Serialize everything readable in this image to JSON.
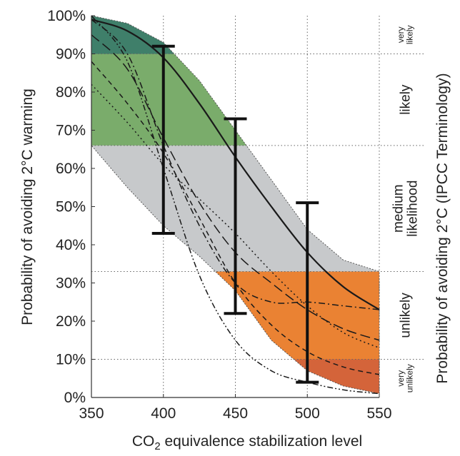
{
  "chart_data": {
    "type": "line",
    "xlabel_parts": [
      "CO",
      "2",
      " equivalence stabilization level"
    ],
    "ylabel": "Probability of avoiding 2°C warming",
    "y2label": "Probability of avoiding 2°C  (IPCC Terminology)",
    "xlim": [
      350,
      550
    ],
    "ylim": [
      0,
      100
    ],
    "x_ticks": [
      350,
      400,
      450,
      500,
      550
    ],
    "x_tick_labels": [
      "350",
      "400",
      "450",
      "500",
      "550"
    ],
    "y_ticks": [
      0,
      10,
      20,
      30,
      40,
      50,
      60,
      70,
      80,
      90,
      100
    ],
    "y_tick_labels": [
      "0%",
      "10%",
      "20%",
      "30%",
      "40%",
      "50%",
      "60%",
      "70%",
      "80%",
      "90%",
      "100%"
    ],
    "grid": true,
    "grid_y": [
      10,
      33,
      66,
      90
    ],
    "grid_x": [
      400,
      450,
      500
    ],
    "envelope": {
      "x": [
        350,
        375,
        400,
        425,
        450,
        475,
        500,
        525,
        550
      ],
      "upper": [
        100,
        98,
        93,
        83,
        70,
        57,
        44,
        36,
        33
      ],
      "lower": [
        66,
        55,
        45,
        37,
        28,
        15,
        7,
        3,
        1
      ]
    },
    "likelihood_bands": [
      {
        "label": "very unlikely",
        "lines": [
          "very",
          "unlikely"
        ],
        "from": 0,
        "to": 10,
        "color": "#d4643a"
      },
      {
        "label": "unlikely",
        "lines": [
          "unlikely"
        ],
        "from": 10,
        "to": 33,
        "color": "#ea8233"
      },
      {
        "label": "medium likelihood",
        "lines": [
          "medium",
          "likelihood"
        ],
        "from": 33,
        "to": 66,
        "color": "#c7c9cb"
      },
      {
        "label": "likely",
        "lines": [
          "likely"
        ],
        "from": 66,
        "to": 90,
        "color": "#7aac6b"
      },
      {
        "label": "very likely",
        "lines": [
          "very",
          "likely"
        ],
        "from": 90,
        "to": 100,
        "color": "#3f7f6a"
      }
    ],
    "series": [
      {
        "style": "solid",
        "x": [
          350,
          375,
          400,
          425,
          450,
          475,
          500,
          525,
          550
        ],
        "y": [
          99,
          96,
          89,
          77,
          63,
          50,
          38,
          29,
          23
        ]
      },
      {
        "style": "long-dash",
        "x": [
          350,
          375,
          400,
          425,
          450,
          475,
          500,
          525,
          550
        ],
        "y": [
          95,
          86,
          68,
          51,
          38,
          30,
          23,
          18,
          15
        ]
      },
      {
        "style": "dash",
        "x": [
          350,
          375,
          400,
          425,
          450,
          475,
          500,
          525,
          550
        ],
        "y": [
          88,
          77,
          64,
          47,
          30,
          19,
          12,
          8,
          6
        ]
      },
      {
        "style": "dash-dot",
        "x": [
          350,
          375,
          400,
          425,
          450,
          475,
          500,
          525,
          550
        ],
        "y": [
          99,
          90,
          66,
          45,
          30,
          25,
          25,
          24,
          23
        ]
      },
      {
        "style": "dot",
        "x": [
          350,
          375,
          400,
          425,
          450,
          475,
          500,
          525,
          550
        ],
        "y": [
          82,
          72,
          61,
          52,
          43,
          33,
          24,
          17,
          13
        ]
      },
      {
        "style": "dash-dot-dot",
        "x": [
          350,
          375,
          400,
          425,
          450,
          475,
          500,
          525,
          550
        ],
        "y": [
          100,
          88,
          60,
          32,
          15,
          7,
          4,
          2,
          1
        ]
      }
    ],
    "error_bars": [
      {
        "x": 400,
        "low": 43,
        "high": 92
      },
      {
        "x": 450,
        "low": 22,
        "high": 73
      },
      {
        "x": 500,
        "low": 4,
        "high": 51
      }
    ]
  }
}
